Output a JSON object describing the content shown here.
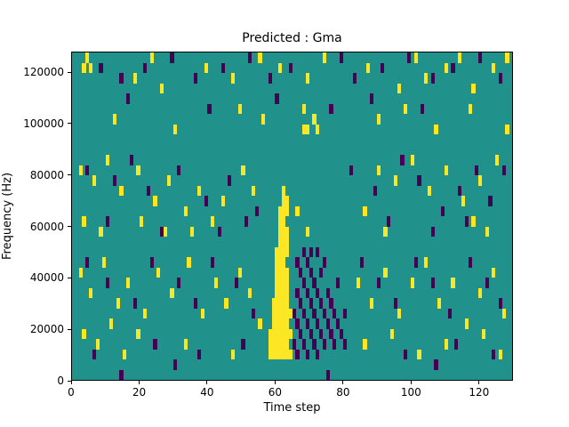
{
  "chart_data": {
    "type": "heatmap",
    "title": "Predicted : Gma",
    "xlabel": "Time step",
    "ylabel": "Frequency (Hz)",
    "xlim": [
      0,
      130
    ],
    "ylim": [
      0,
      128000
    ],
    "x_ticks": [
      0,
      20,
      40,
      60,
      80,
      100,
      120
    ],
    "y_ticks": [
      0,
      20000,
      40000,
      60000,
      80000,
      100000,
      120000
    ],
    "grid": {
      "cols": 130,
      "rows": 32,
      "hz_per_row": 4000
    },
    "colors": {
      "mid": "#21918c",
      "high": "#fde725",
      "low": "#440154"
    },
    "legend": "none",
    "cells": {
      "yellow": [
        [
          58,
          2
        ],
        [
          59,
          2
        ],
        [
          60,
          2
        ],
        [
          61,
          2
        ],
        [
          62,
          2
        ],
        [
          63,
          2
        ],
        [
          64,
          2
        ],
        [
          58,
          3
        ],
        [
          59,
          3
        ],
        [
          60,
          3
        ],
        [
          61,
          3
        ],
        [
          62,
          3
        ],
        [
          63,
          3
        ],
        [
          58,
          4
        ],
        [
          59,
          4
        ],
        [
          60,
          4
        ],
        [
          61,
          4
        ],
        [
          62,
          4
        ],
        [
          63,
          4
        ],
        [
          64,
          4
        ],
        [
          59,
          5
        ],
        [
          60,
          5
        ],
        [
          61,
          5
        ],
        [
          62,
          5
        ],
        [
          63,
          5
        ],
        [
          59,
          6
        ],
        [
          60,
          6
        ],
        [
          61,
          6
        ],
        [
          62,
          6
        ],
        [
          63,
          6
        ],
        [
          64,
          6
        ],
        [
          59,
          7
        ],
        [
          60,
          7
        ],
        [
          61,
          7
        ],
        [
          62,
          7
        ],
        [
          63,
          7
        ],
        [
          60,
          8
        ],
        [
          61,
          8
        ],
        [
          62,
          8
        ],
        [
          63,
          8
        ],
        [
          60,
          9
        ],
        [
          61,
          9
        ],
        [
          62,
          9
        ],
        [
          63,
          9
        ],
        [
          60,
          10
        ],
        [
          61,
          10
        ],
        [
          62,
          10
        ],
        [
          63,
          10
        ],
        [
          60,
          11
        ],
        [
          61,
          11
        ],
        [
          62,
          11
        ],
        [
          60,
          12
        ],
        [
          61,
          12
        ],
        [
          62,
          12
        ],
        [
          63,
          12
        ],
        [
          61,
          13
        ],
        [
          62,
          13
        ],
        [
          63,
          13
        ],
        [
          61,
          14
        ],
        [
          62,
          14
        ],
        [
          63,
          14
        ],
        [
          61,
          15
        ],
        [
          62,
          15
        ],
        [
          61,
          16
        ],
        [
          62,
          16
        ],
        [
          63,
          16
        ],
        [
          62,
          17
        ],
        [
          63,
          17
        ],
        [
          62,
          18
        ],
        [
          3,
          30
        ],
        [
          4,
          31
        ],
        [
          5,
          30
        ],
        [
          12,
          25
        ],
        [
          18,
          29
        ],
        [
          23,
          31
        ],
        [
          26,
          28
        ],
        [
          30,
          24
        ],
        [
          39,
          30
        ],
        [
          47,
          29
        ],
        [
          49,
          26
        ],
        [
          55,
          31
        ],
        [
          56,
          25
        ],
        [
          61,
          30
        ],
        [
          68,
          26
        ],
        [
          68,
          24
        ],
        [
          69,
          24
        ],
        [
          71,
          25
        ],
        [
          69,
          29
        ],
        [
          72,
          24
        ],
        [
          74,
          31
        ],
        [
          87,
          30
        ],
        [
          90,
          25
        ],
        [
          96,
          28
        ],
        [
          98,
          26
        ],
        [
          101,
          31
        ],
        [
          104,
          29
        ],
        [
          107,
          24
        ],
        [
          110,
          30
        ],
        [
          114,
          31
        ],
        [
          117,
          26
        ],
        [
          118,
          28
        ],
        [
          124,
          30
        ],
        [
          128,
          31
        ],
        [
          128,
          24
        ],
        [
          2,
          20
        ],
        [
          3,
          15
        ],
        [
          6,
          19
        ],
        [
          8,
          14
        ],
        [
          10,
          21
        ],
        [
          14,
          18
        ],
        [
          19,
          20
        ],
        [
          20,
          15
        ],
        [
          24,
          17
        ],
        [
          27,
          14
        ],
        [
          28,
          19
        ],
        [
          33,
          16
        ],
        [
          35,
          14
        ],
        [
          37,
          18
        ],
        [
          41,
          15
        ],
        [
          44,
          17
        ],
        [
          50,
          20
        ],
        [
          53,
          18
        ],
        [
          66,
          16
        ],
        [
          69,
          14
        ],
        [
          86,
          16
        ],
        [
          90,
          20
        ],
        [
          92,
          14
        ],
        [
          95,
          19
        ],
        [
          100,
          21
        ],
        [
          105,
          18
        ],
        [
          110,
          20
        ],
        [
          115,
          17
        ],
        [
          118,
          15
        ],
        [
          120,
          19
        ],
        [
          122,
          14
        ],
        [
          125,
          21
        ],
        [
          2,
          10
        ],
        [
          3,
          4
        ],
        [
          5,
          8
        ],
        [
          7,
          3
        ],
        [
          9,
          11
        ],
        [
          11,
          5
        ],
        [
          13,
          7
        ],
        [
          15,
          2
        ],
        [
          16,
          9
        ],
        [
          19,
          4
        ],
        [
          21,
          6
        ],
        [
          25,
          10
        ],
        [
          29,
          8
        ],
        [
          33,
          3
        ],
        [
          34,
          11
        ],
        [
          38,
          6
        ],
        [
          42,
          9
        ],
        [
          45,
          7
        ],
        [
          47,
          2
        ],
        [
          49,
          10
        ],
        [
          52,
          8
        ],
        [
          55,
          5
        ],
        [
          84,
          9
        ],
        [
          86,
          3
        ],
        [
          88,
          7
        ],
        [
          92,
          10
        ],
        [
          94,
          4
        ],
        [
          96,
          6
        ],
        [
          100,
          9
        ],
        [
          102,
          2
        ],
        [
          104,
          11
        ],
        [
          108,
          7
        ],
        [
          110,
          3
        ],
        [
          112,
          9
        ],
        [
          116,
          5
        ],
        [
          120,
          8
        ],
        [
          121,
          4
        ],
        [
          124,
          10
        ],
        [
          126,
          2
        ],
        [
          127,
          6
        ]
      ],
      "purple": [
        [
          8,
          30
        ],
        [
          14,
          29
        ],
        [
          16,
          27
        ],
        [
          21,
          30
        ],
        [
          29,
          31
        ],
        [
          36,
          29
        ],
        [
          40,
          26
        ],
        [
          44,
          30
        ],
        [
          52,
          31
        ],
        [
          58,
          29
        ],
        [
          60,
          27
        ],
        [
          64,
          30
        ],
        [
          76,
          26
        ],
        [
          79,
          31
        ],
        [
          83,
          29
        ],
        [
          88,
          27
        ],
        [
          91,
          30
        ],
        [
          99,
          31
        ],
        [
          103,
          26
        ],
        [
          106,
          29
        ],
        [
          112,
          30
        ],
        [
          120,
          31
        ],
        [
          126,
          29
        ],
        [
          4,
          20
        ],
        [
          10,
          15
        ],
        [
          12,
          19
        ],
        [
          17,
          21
        ],
        [
          22,
          18
        ],
        [
          26,
          14
        ],
        [
          31,
          20
        ],
        [
          39,
          17
        ],
        [
          43,
          14
        ],
        [
          46,
          19
        ],
        [
          51,
          15
        ],
        [
          54,
          16
        ],
        [
          82,
          20
        ],
        [
          89,
          18
        ],
        [
          93,
          15
        ],
        [
          97,
          21
        ],
        [
          102,
          19
        ],
        [
          106,
          14
        ],
        [
          109,
          16
        ],
        [
          114,
          18
        ],
        [
          116,
          15
        ],
        [
          119,
          20
        ],
        [
          123,
          17
        ],
        [
          127,
          20
        ],
        [
          4,
          11
        ],
        [
          6,
          2
        ],
        [
          10,
          9
        ],
        [
          18,
          7
        ],
        [
          23,
          11
        ],
        [
          24,
          3
        ],
        [
          31,
          9
        ],
        [
          36,
          7
        ],
        [
          37,
          2
        ],
        [
          41,
          11
        ],
        [
          48,
          9
        ],
        [
          50,
          3
        ],
        [
          53,
          6
        ],
        [
          85,
          11
        ],
        [
          90,
          9
        ],
        [
          95,
          7
        ],
        [
          98,
          2
        ],
        [
          101,
          11
        ],
        [
          106,
          9
        ],
        [
          111,
          6
        ],
        [
          113,
          3
        ],
        [
          117,
          11
        ],
        [
          122,
          9
        ],
        [
          124,
          2
        ],
        [
          126,
          7
        ],
        [
          14,
          0
        ],
        [
          30,
          1
        ],
        [
          75,
          0
        ],
        [
          107,
          1
        ],
        [
          65,
          3
        ],
        [
          65,
          6
        ],
        [
          66,
          2
        ],
        [
          66,
          5
        ],
        [
          66,
          8
        ],
        [
          66,
          11
        ],
        [
          67,
          4
        ],
        [
          67,
          7
        ],
        [
          67,
          10
        ],
        [
          68,
          3
        ],
        [
          68,
          6
        ],
        [
          68,
          9
        ],
        [
          68,
          12
        ],
        [
          69,
          2
        ],
        [
          69,
          5
        ],
        [
          69,
          8
        ],
        [
          69,
          11
        ],
        [
          70,
          4
        ],
        [
          70,
          7
        ],
        [
          70,
          10
        ],
        [
          70,
          12
        ],
        [
          71,
          3
        ],
        [
          71,
          6
        ],
        [
          71,
          9
        ],
        [
          72,
          2
        ],
        [
          72,
          5
        ],
        [
          72,
          8
        ],
        [
          72,
          12
        ],
        [
          73,
          4
        ],
        [
          73,
          7
        ],
        [
          73,
          10
        ],
        [
          74,
          3
        ],
        [
          74,
          6
        ],
        [
          74,
          11
        ],
        [
          75,
          5
        ],
        [
          75,
          8
        ],
        [
          76,
          4
        ],
        [
          76,
          7
        ],
        [
          77,
          3
        ],
        [
          77,
          6
        ],
        [
          78,
          5
        ],
        [
          78,
          9
        ],
        [
          79,
          4
        ],
        [
          80,
          3
        ],
        [
          80,
          6
        ]
      ]
    }
  }
}
